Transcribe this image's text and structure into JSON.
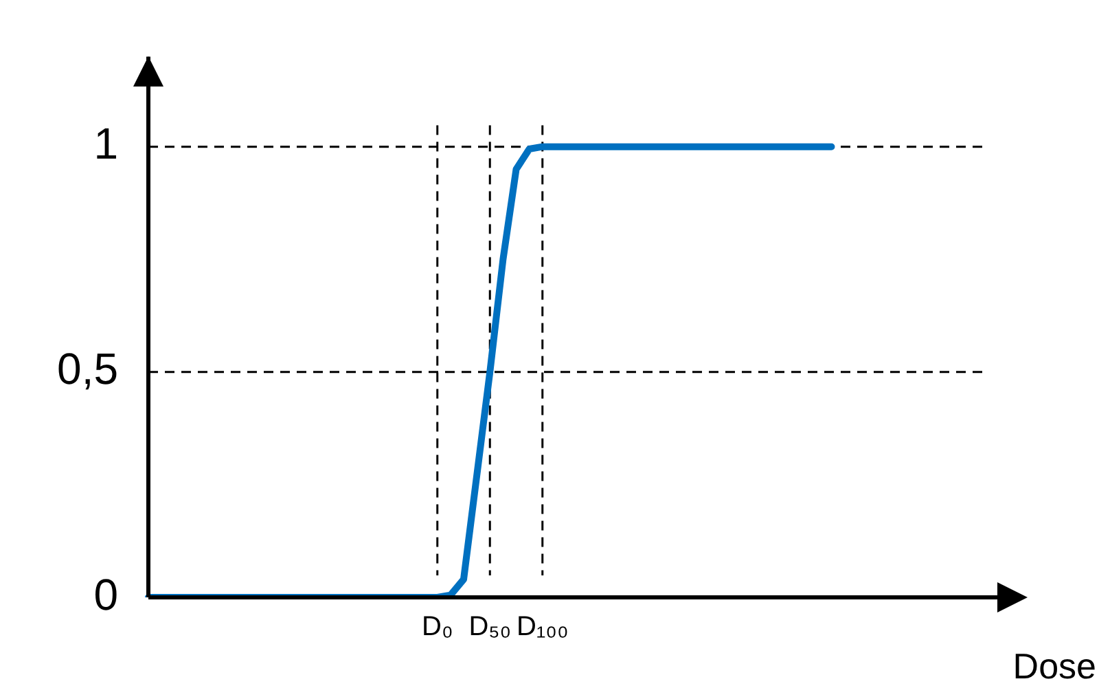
{
  "chart_data": {
    "type": "line",
    "xlabel": "Dose",
    "categories": [
      null,
      null,
      null,
      null,
      null,
      null,
      null,
      null,
      null,
      null,
      null,
      null,
      null,
      null,
      null,
      null,
      null,
      null,
      null,
      null,
      null,
      null,
      "D₀",
      null,
      null,
      null,
      "D₅₀",
      null,
      null,
      null,
      "D₁₀₀",
      null,
      null,
      null,
      null,
      null,
      null,
      null,
      null,
      null,
      null,
      null,
      null,
      null,
      null,
      null,
      null,
      null,
      null,
      null,
      null,
      null,
      null,
      null,
      null,
      null,
      null,
      null,
      null,
      null,
      null,
      null,
      null,
      null,
      null
    ],
    "series": [
      {
        "color": "#0070c0",
        "values": [
          0,
          0,
          0,
          0,
          0,
          0,
          0,
          0,
          0,
          0,
          0,
          0,
          0,
          0,
          0,
          0,
          0,
          0,
          0,
          0,
          0,
          0,
          0,
          0.005,
          0.04,
          0.27,
          0.5,
          0.75,
          0.95,
          0.995,
          1,
          1,
          1,
          1,
          1,
          1,
          1,
          1,
          1,
          1,
          1,
          1,
          1,
          1,
          1,
          1,
          1,
          1,
          1,
          1,
          1,
          1,
          1,
          null,
          null,
          null,
          null,
          null,
          null,
          null,
          null,
          null,
          null,
          null,
          null
        ]
      }
    ],
    "ylim": [
      0,
      1.2
    ],
    "yticks": [
      0,
      {
        "value": 0.5,
        "label": "0,5"
      },
      1
    ],
    "ref_lines": [
      {
        "axis": "y",
        "value": 1,
        "line_style": "dashed",
        "color": "#000000"
      },
      {
        "axis": "y",
        "value": 0.5,
        "line_style": "dashed",
        "color": "#000000"
      },
      {
        "axis": "x",
        "value": "D₀",
        "line_style": "dashed",
        "color": "#000000"
      },
      {
        "axis": "x",
        "value": "D₅₀",
        "line_style": "dashed",
        "color": "#000000"
      },
      {
        "axis": "x",
        "value": "D₁₀₀",
        "line_style": "dashed",
        "color": "#000000"
      }
    ],
    "grid": false,
    "legend": false,
    "marker": "none",
    "line_style": "solid"
  }
}
